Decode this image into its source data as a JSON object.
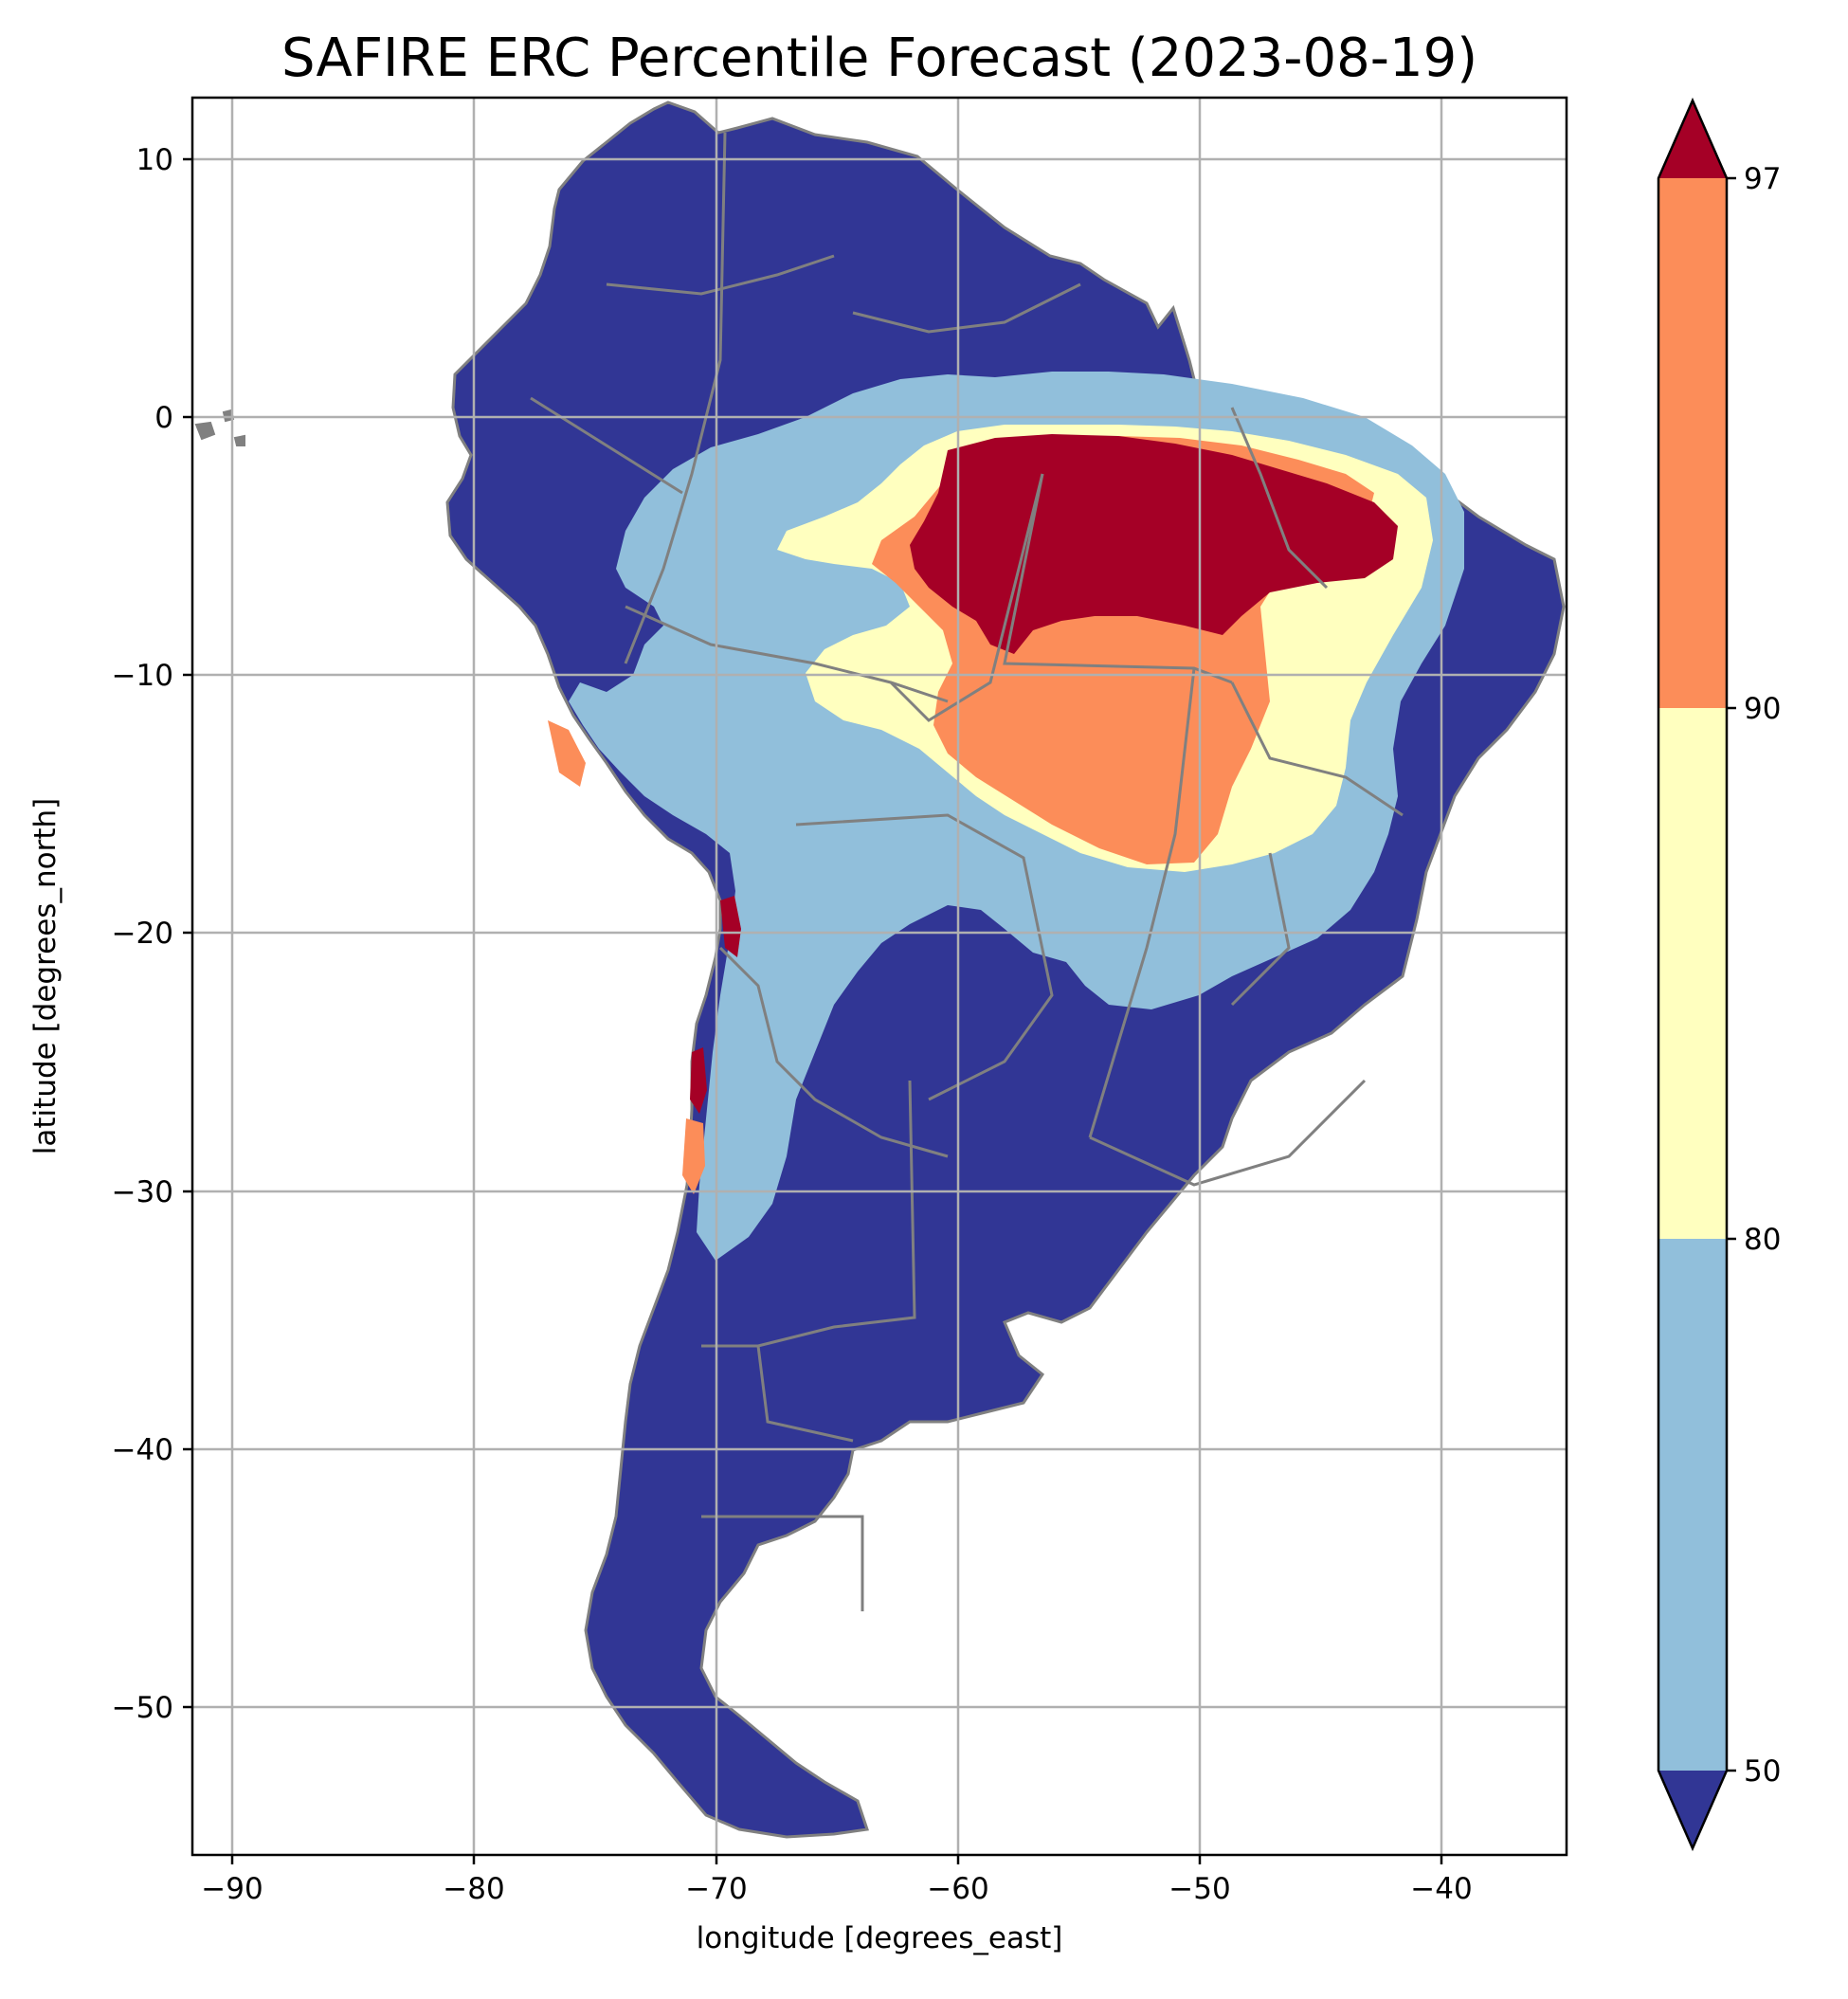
{
  "title": "SAFIRE ERC Percentile Forecast (2023-08-19)",
  "map": {
    "region": "South America",
    "projection": "PlateCarree",
    "extent": {
      "lon": [
        -91.5,
        -35
      ],
      "lat": [
        -55.8,
        12.3
      ]
    },
    "x_label": "longitude [degrees_east]",
    "y_label": "latitude [degrees_north]",
    "x_ticks": [
      -90,
      -80,
      -70,
      -60,
      -50,
      -40
    ],
    "x_tick_labels": [
      "−90",
      "−80",
      "−70",
      "−60",
      "−50",
      "−40"
    ],
    "y_ticks": [
      10,
      0,
      -10,
      -20,
      -30,
      -40,
      -50
    ],
    "y_tick_labels": [
      "10",
      "0",
      "−10",
      "−20",
      "−30",
      "−40",
      "−50"
    ],
    "grid": true,
    "border_color": "#808080",
    "grid_color": "#b0b0b0"
  },
  "colorbar": {
    "levels": [
      50,
      80,
      90,
      97
    ],
    "tick_labels": [
      "50",
      "80",
      "90",
      "97"
    ],
    "extend": "both",
    "bins": [
      {
        "range": "< 50",
        "color": "#313695"
      },
      {
        "range": "50 – 80",
        "color": "#91bfdb"
      },
      {
        "range": "80 – 90",
        "color": "#ffffbf"
      },
      {
        "range": "90 – 97",
        "color": "#fc8d59"
      },
      {
        "range": "> 97",
        "color": "#a50026"
      }
    ]
  }
}
